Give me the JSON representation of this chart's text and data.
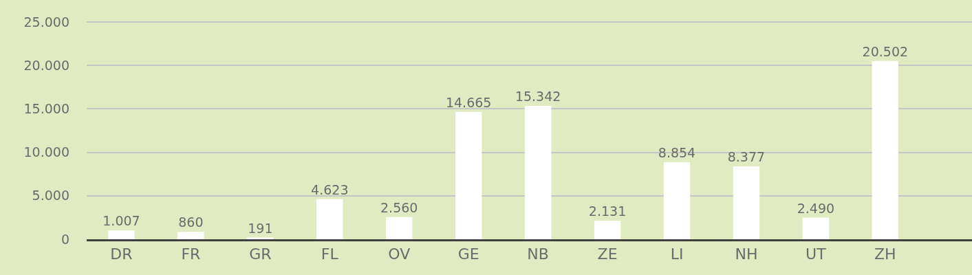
{
  "chart_data": {
    "type": "bar",
    "categories": [
      "DR",
      "FR",
      "GR",
      "FL",
      "OV",
      "GE",
      "NB",
      "ZE",
      "LI",
      "NH",
      "UT",
      "ZH"
    ],
    "values": [
      1007,
      860,
      191,
      4623,
      2560,
      14665,
      15342,
      2131,
      8854,
      8377,
      2490,
      20502
    ],
    "value_labels": [
      "1.007",
      "860",
      "191",
      "4.623",
      "2.560",
      "14.665",
      "15.342",
      "2.131",
      "8.854",
      "8.377",
      "2.490",
      "20.502"
    ],
    "color": "#ffffff",
    "ylim": [
      0,
      25000
    ],
    "yticks": [
      0,
      {
        "value": 5000,
        "label": "5.000"
      },
      {
        "value": 10000,
        "label": "10.000"
      },
      {
        "value": 15000,
        "label": "15.000"
      },
      {
        "value": 20000,
        "label": "20.000"
      },
      {
        "value": 25000,
        "label": "25.000"
      }
    ],
    "grid": "y"
  }
}
